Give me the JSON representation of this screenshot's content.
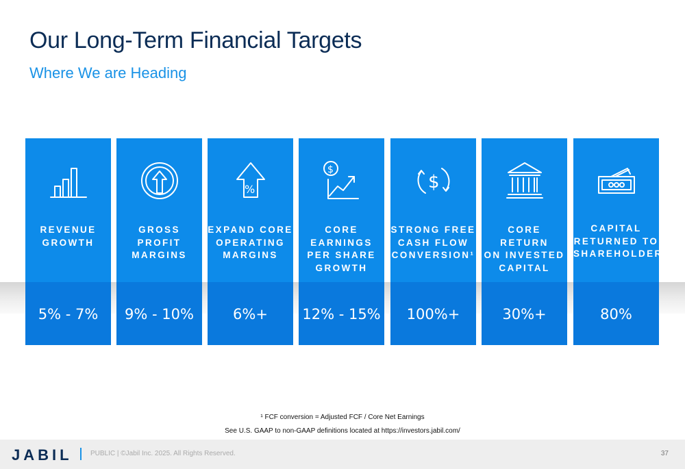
{
  "header": {
    "title": "Our Long-Term Financial Targets",
    "subtitle": "Where We are Heading"
  },
  "cards": [
    {
      "icon": "bar-chart-icon",
      "label": "REVENUE\nGROWTH",
      "value": "5% - 7%"
    },
    {
      "icon": "circle-up-arrow-icon",
      "label": "GROSS\nPROFIT\nMARGINS",
      "value": "9% - 10%"
    },
    {
      "icon": "percent-up-arrow-icon",
      "label": "EXPAND CORE\nOPERATING\nMARGINS",
      "value": "6%+"
    },
    {
      "icon": "dollar-growth-chart-icon",
      "label": "CORE EARNINGS\nPER SHARE\nGROWTH",
      "value": "12% - 15%"
    },
    {
      "icon": "dollar-cycle-icon",
      "label": "STRONG FREE\nCASH FLOW\nCONVERSION¹",
      "value": "100%+"
    },
    {
      "icon": "bank-building-icon",
      "label": "CORE RETURN\nON INVESTED\nCAPITAL",
      "value": "30%+"
    },
    {
      "icon": "cash-bills-icon",
      "label": "CAPITAL\nRETURNED TO\nSHAREHOLDERS",
      "value": "80%"
    }
  ],
  "footnotes": {
    "note1": "¹ FCF conversion = Adjusted FCF / Core Net Earnings",
    "note2": "See U.S. GAAP to non-GAAP definitions located at https://investors.jabil.com/"
  },
  "footer": {
    "logo": "JABIL",
    "copyright": "PUBLIC  |  ©Jabil Inc. 2025. All Rights Reserved.",
    "page_number": "37"
  }
}
